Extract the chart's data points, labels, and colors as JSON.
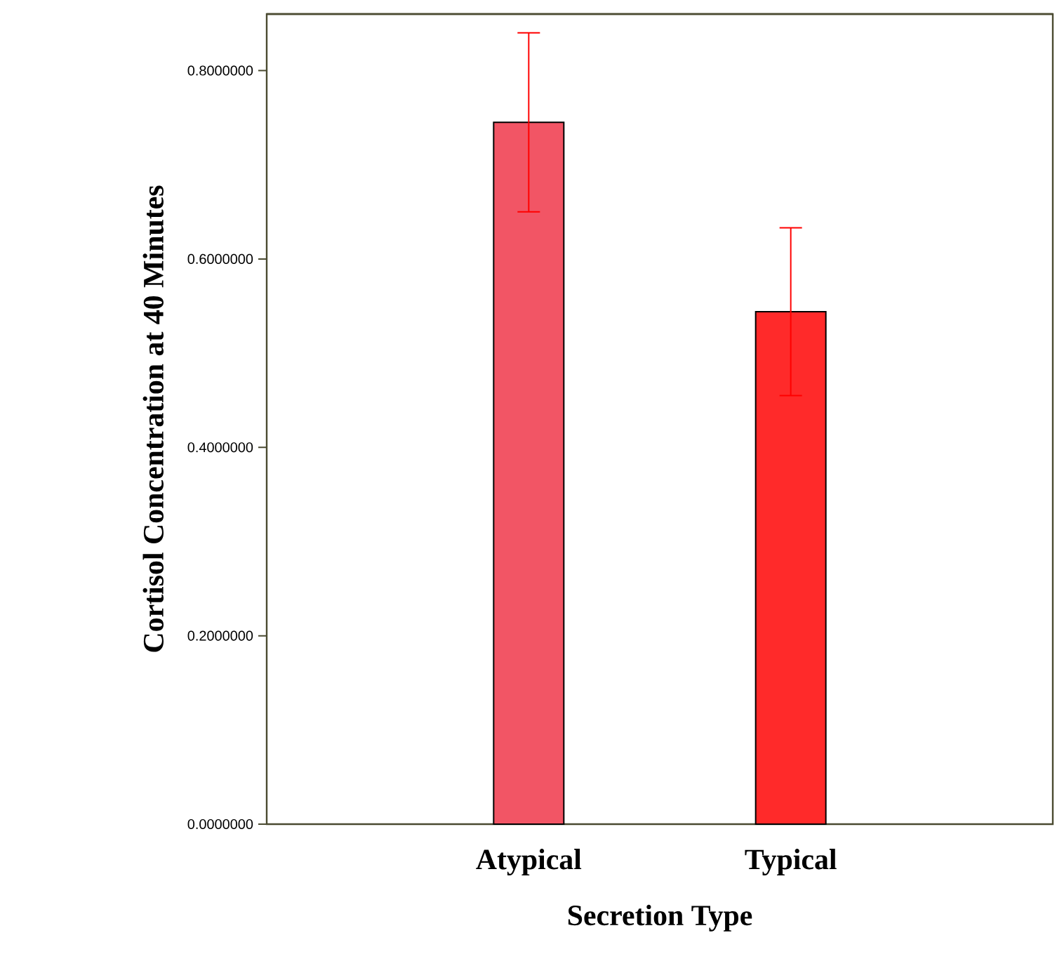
{
  "chart_data": {
    "type": "bar",
    "xlabel": "Secretion Type",
    "ylabel": "Cortisol Concentration at 40 Minutes",
    "categories": [
      "Atypical",
      "Typical"
    ],
    "values": [
      0.745,
      0.544
    ],
    "errors": [
      0.095,
      0.089
    ],
    "colors": [
      "#f25565",
      "#ff2a2a"
    ],
    "ylim": [
      0,
      0.86
    ],
    "yticks": [
      {
        "value": 0,
        "label": "0.0000000"
      },
      {
        "value": 0.2,
        "label": "0.2000000"
      },
      {
        "value": 0.4,
        "label": "0.4000000"
      },
      {
        "value": 0.6,
        "label": "0.6000000"
      },
      {
        "value": 0.8,
        "label": "0.8000000"
      }
    ],
    "grid": false
  }
}
